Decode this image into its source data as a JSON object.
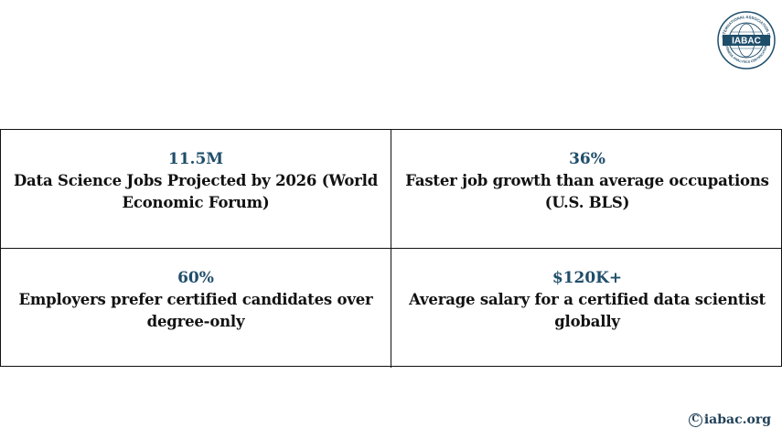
{
  "logo": {
    "text": "IABAC",
    "ring_top": "INTERNATIONAL ASSOCIATION OF",
    "ring_bottom": "BUSINESS ANALYTICS CERTIFICATIONS",
    "icon": "globe-icon",
    "color": "#1f4e6b"
  },
  "stats": [
    {
      "value": "11.5M",
      "description": "Data Science Jobs Projected by 2026 (World Economic Forum)"
    },
    {
      "value": "36%",
      "description": "Faster job growth than average occupations (U.S. BLS)"
    },
    {
      "value": "60%",
      "description": "Employers prefer certified candidates over degree-only"
    },
    {
      "value": "$120K+",
      "description": "Average salary for a certified data scientist globally"
    }
  ],
  "footer": {
    "symbol": "C",
    "website": "iabac.org"
  },
  "colors": {
    "accent": "#1f4e6b",
    "text": "#111111",
    "border": "#111111"
  }
}
